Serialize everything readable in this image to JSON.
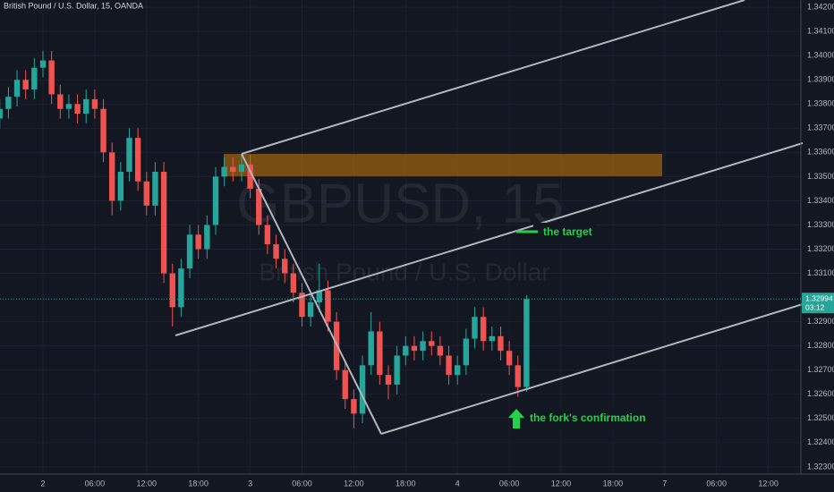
{
  "chart_data": {
    "type": "candlestick",
    "title": "British Pound / U.S. Dollar, 15, OANDA",
    "watermark": "GBPUSD, 15",
    "watermark_subtitle": "British Pound / U.S. Dollar",
    "annotations": [
      "the target",
      "the fork's confirmation"
    ],
    "price_label": "1.32994",
    "countdown": "03:12",
    "up_color": "#26a69a",
    "down_color": "#ef5350",
    "grid": true,
    "ylim": [
      1.3227,
      1.3423
    ],
    "yticks": [
      {
        "value": 1.342,
        "label": "1.34200"
      },
      {
        "value": 1.341,
        "label": "1.34100"
      },
      {
        "value": 1.34,
        "label": "1.34000"
      },
      {
        "value": 1.339,
        "label": "1.33900"
      },
      {
        "value": 1.338,
        "label": "1.33800"
      },
      {
        "value": 1.337,
        "label": "1.33700"
      },
      {
        "value": 1.336,
        "label": "1.33600"
      },
      {
        "value": 1.335,
        "label": "1.33500"
      },
      {
        "value": 1.334,
        "label": "1.33400"
      },
      {
        "value": 1.333,
        "label": "1.33300"
      },
      {
        "value": 1.332,
        "label": "1.33200"
      },
      {
        "value": 1.331,
        "label": "1.33100"
      },
      {
        "value": 1.329,
        "label": "1.32900"
      },
      {
        "value": 1.328,
        "label": "1.32800"
      },
      {
        "value": 1.327,
        "label": "1.32700"
      },
      {
        "value": 1.326,
        "label": "1.32600"
      },
      {
        "value": 1.325,
        "label": "1.32500"
      },
      {
        "value": 1.324,
        "label": "1.32400"
      },
      {
        "value": 1.323,
        "label": "1.32300"
      }
    ],
    "xticks": [
      "2",
      "06:00",
      "12:00",
      "18:00",
      "3",
      "06:00",
      "12:00",
      "18:00",
      "4",
      "06:00",
      "12:00",
      "18:00",
      "7",
      "06:00",
      "12:00"
    ],
    "open": [
      1.3374,
      1.3378,
      1.3383,
      1.339,
      1.3386,
      1.3395,
      1.3398,
      1.3384,
      1.3378,
      1.338,
      1.3376,
      1.3382,
      1.3378,
      1.336,
      1.334,
      1.3352,
      1.3366,
      1.3348,
      1.3338,
      1.3352,
      1.331,
      1.3296,
      1.3312,
      1.3326,
      1.332,
      1.333,
      1.335,
      1.3354,
      1.3352,
      1.3355,
      1.3345,
      1.333,
      1.3322,
      1.3316,
      1.331,
      1.3302,
      1.3292,
      1.3298,
      1.3303,
      1.329,
      1.327,
      1.3258,
      1.3252,
      1.3272,
      1.3286,
      1.3268,
      1.3264,
      1.3276,
      1.328,
      1.3278,
      1.3282,
      1.328,
      1.3276,
      1.3268,
      1.3272,
      1.3283,
      1.3292,
      1.3282,
      1.3284,
      1.3278,
      1.3272,
      1.3263
    ],
    "high": [
      1.3382,
      1.3387,
      1.3394,
      1.3394,
      1.3399,
      1.3402,
      1.3402,
      1.3388,
      1.3384,
      1.3384,
      1.3386,
      1.3386,
      1.3382,
      1.3364,
      1.3356,
      1.337,
      1.337,
      1.3352,
      1.3356,
      1.3356,
      1.3314,
      1.3316,
      1.333,
      1.333,
      1.3334,
      1.3354,
      1.3358,
      1.3358,
      1.3359,
      1.3359,
      1.3349,
      1.3334,
      1.3326,
      1.332,
      1.3314,
      1.3306,
      1.3302,
      1.3314,
      1.3307,
      1.3294,
      1.3274,
      1.3262,
      1.3276,
      1.3294,
      1.329,
      1.3272,
      1.328,
      1.3284,
      1.3284,
      1.3286,
      1.3286,
      1.3284,
      1.328,
      1.3276,
      1.3287,
      1.3296,
      1.3296,
      1.3288,
      1.3288,
      1.3282,
      1.3276,
      1.3301
    ],
    "low": [
      1.337,
      1.3374,
      1.3379,
      1.3382,
      1.3382,
      1.3391,
      1.338,
      1.3374,
      1.3374,
      1.3372,
      1.3372,
      1.3374,
      1.3356,
      1.3334,
      1.3336,
      1.3348,
      1.3344,
      1.3334,
      1.3334,
      1.3306,
      1.3288,
      1.3292,
      1.3308,
      1.3316,
      1.3316,
      1.3326,
      1.3346,
      1.3348,
      1.3348,
      1.3341,
      1.3326,
      1.3318,
      1.3312,
      1.3306,
      1.3298,
      1.3288,
      1.3288,
      1.3294,
      1.3286,
      1.3266,
      1.3254,
      1.3246,
      1.3248,
      1.3268,
      1.3264,
      1.3258,
      1.326,
      1.3272,
      1.3274,
      1.3274,
      1.3276,
      1.3272,
      1.3264,
      1.3264,
      1.3268,
      1.3279,
      1.3278,
      1.3278,
      1.3274,
      1.3268,
      1.3259,
      1.3261
    ],
    "close": [
      1.3378,
      1.3383,
      1.339,
      1.3386,
      1.3395,
      1.3398,
      1.3384,
      1.3378,
      1.338,
      1.3376,
      1.3382,
      1.3378,
      1.336,
      1.334,
      1.3352,
      1.3366,
      1.3348,
      1.3338,
      1.3352,
      1.331,
      1.3296,
      1.3312,
      1.3326,
      1.332,
      1.333,
      1.335,
      1.3354,
      1.3352,
      1.3355,
      1.3345,
      1.333,
      1.3322,
      1.3316,
      1.331,
      1.3302,
      1.3292,
      1.3298,
      1.3303,
      1.329,
      1.327,
      1.3258,
      1.3252,
      1.3272,
      1.3286,
      1.3268,
      1.3264,
      1.3276,
      1.328,
      1.3278,
      1.3282,
      1.328,
      1.3276,
      1.3268,
      1.3272,
      1.3283,
      1.3292,
      1.3282,
      1.3284,
      1.3278,
      1.3272,
      1.3263,
      1.32994
    ]
  }
}
